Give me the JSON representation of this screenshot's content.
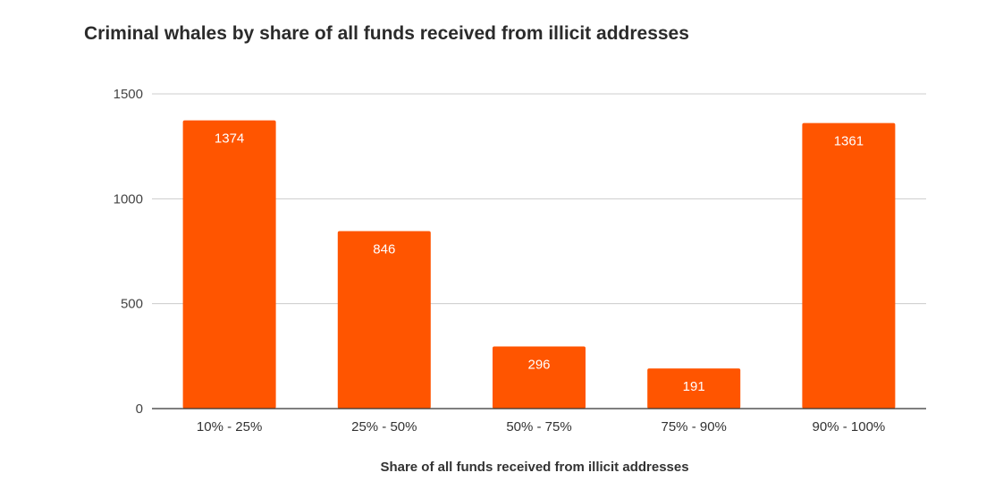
{
  "chart_data": {
    "type": "bar",
    "title": "Criminal whales by share of all funds received from illicit addresses",
    "xlabel": "Share of all funds received from illicit addresses",
    "ylabel": "",
    "categories": [
      "10% - 25%",
      "25% - 50%",
      "50% - 75%",
      "75% - 90%",
      "90% - 100%"
    ],
    "values": [
      1374,
      846,
      296,
      191,
      1361
    ],
    "ylim": [
      0,
      1500
    ],
    "yticks": [
      0,
      500,
      1000,
      1500
    ],
    "grid": true,
    "legend": "none",
    "data_labels": true,
    "bar_color": "#ff5500",
    "grid_color": "#cccccc",
    "axis_color": "#333333"
  }
}
